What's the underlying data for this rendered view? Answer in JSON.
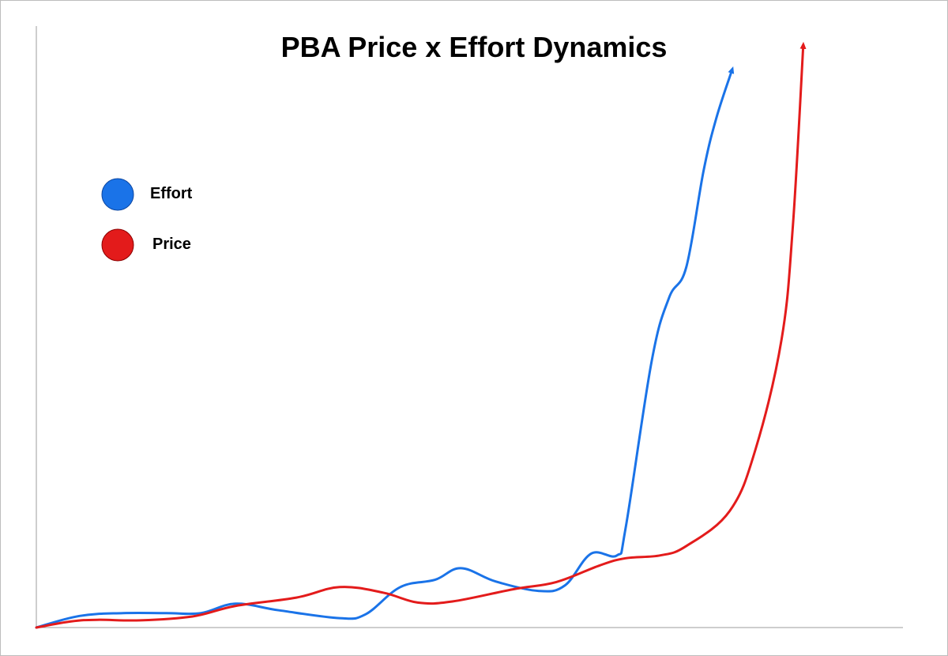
{
  "chart_data": {
    "type": "line",
    "title": "PBA Price x Effort Dynamics",
    "xlabel": "",
    "ylabel": "",
    "xlim": [
      0,
      100
    ],
    "ylim": [
      0,
      100
    ],
    "grid": false,
    "legend_position": "left",
    "series": [
      {
        "name": "Effort",
        "color": "#1a73e8",
        "arrow_end": true,
        "points": [
          [
            0,
            0
          ],
          [
            5,
            2.1
          ],
          [
            10,
            2.6
          ],
          [
            15,
            2.6
          ],
          [
            19,
            2.6
          ],
          [
            23,
            4.3
          ],
          [
            28,
            3.1
          ],
          [
            35,
            1.7
          ],
          [
            38,
            2.4
          ],
          [
            42,
            7.3
          ],
          [
            46,
            8.6
          ],
          [
            49,
            10.7
          ],
          [
            53,
            8.3
          ],
          [
            58,
            6.6
          ],
          [
            61,
            7.6
          ],
          [
            64,
            13.3
          ],
          [
            67,
            13.0
          ],
          [
            68,
            18.0
          ],
          [
            71,
            48.0
          ],
          [
            73,
            59.4
          ],
          [
            75,
            65.0
          ],
          [
            77,
            82.4
          ],
          [
            78.5,
            92.0
          ],
          [
            80.3,
            100.6
          ]
        ]
      },
      {
        "name": "Price",
        "color": "#e31b1b",
        "arrow_end": true,
        "points": [
          [
            0,
            0
          ],
          [
            4,
            1.1
          ],
          [
            7,
            1.4
          ],
          [
            12,
            1.3
          ],
          [
            18,
            2.0
          ],
          [
            23,
            3.9
          ],
          [
            30,
            5.4
          ],
          [
            35,
            7.3
          ],
          [
            40,
            6.3
          ],
          [
            44,
            4.5
          ],
          [
            48,
            4.7
          ],
          [
            55,
            6.9
          ],
          [
            60,
            8.2
          ],
          [
            65,
            11.2
          ],
          [
            68,
            12.5
          ],
          [
            72,
            13.0
          ],
          [
            75,
            14.7
          ],
          [
            80,
            21.0
          ],
          [
            83,
            32.2
          ],
          [
            86,
            52.0
          ],
          [
            87.3,
            72.5
          ],
          [
            88.5,
            105.0
          ]
        ]
      }
    ]
  },
  "legend": {
    "items": [
      {
        "label": "Effort",
        "color": "#1a73e8"
      },
      {
        "label": "Price",
        "color": "#e31b1b"
      }
    ]
  }
}
